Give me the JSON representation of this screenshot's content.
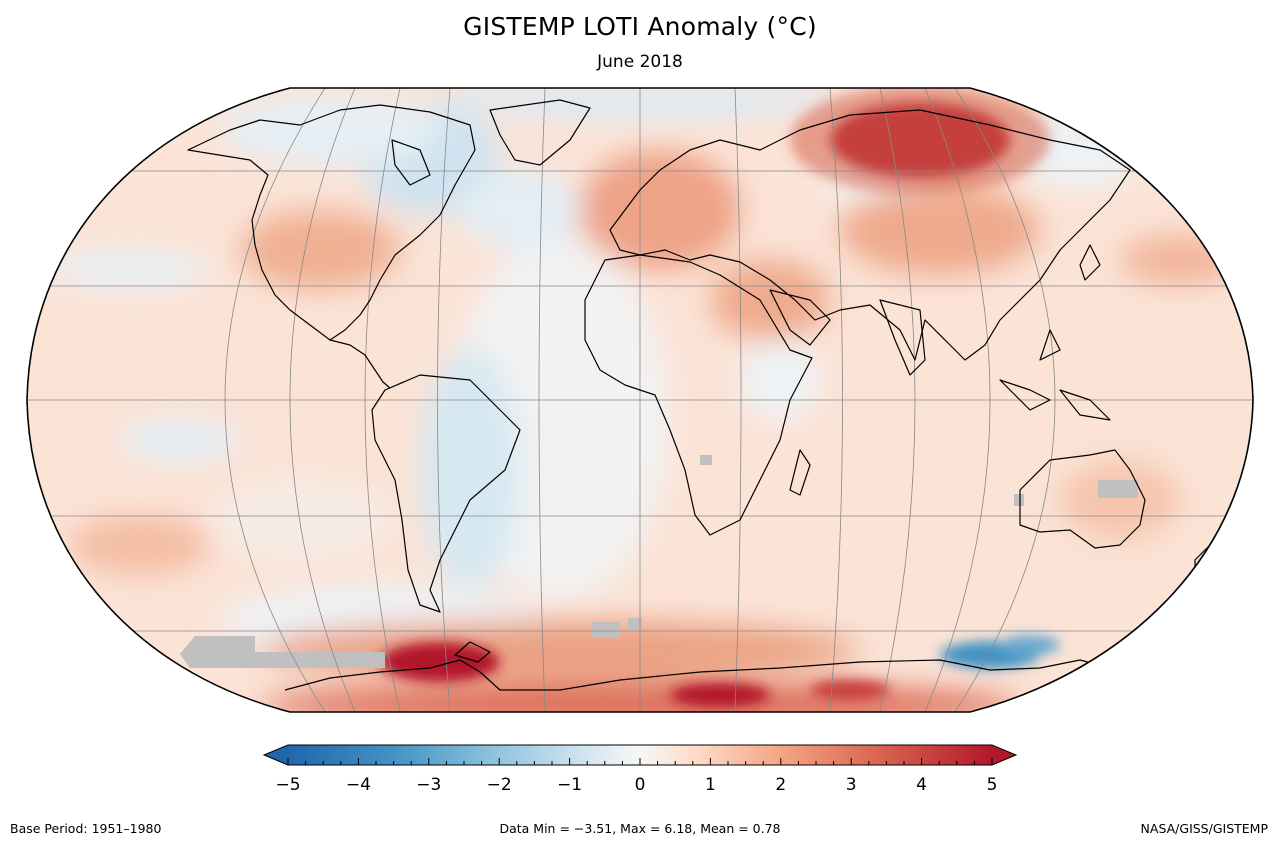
{
  "title": "GISTEMP LOTI Anomaly (°C)",
  "subtitle": "June 2018",
  "footer": {
    "base_period": "Base Period: 1951–1980",
    "stats": "Data Min = −3.51, Max = 6.18, Mean = 0.78",
    "credit": "NASA/GISS/GISTEMP"
  },
  "colorbar": {
    "min": -5,
    "max": 5,
    "ticks": [
      {
        "value": -5,
        "label": "−5"
      },
      {
        "value": -4,
        "label": "−4"
      },
      {
        "value": -3,
        "label": "−3"
      },
      {
        "value": -2,
        "label": "−2"
      },
      {
        "value": -1,
        "label": "−1"
      },
      {
        "value": 0,
        "label": "0"
      },
      {
        "value": 1,
        "label": "1"
      },
      {
        "value": 2,
        "label": "2"
      },
      {
        "value": 3,
        "label": "3"
      },
      {
        "value": 4,
        "label": "4"
      },
      {
        "value": 5,
        "label": "5"
      }
    ],
    "colors": [
      "#2166ac",
      "#4393c3",
      "#92c5de",
      "#d1e5f0",
      "#f7f7f7",
      "#fddbc7",
      "#f4a582",
      "#d6604d",
      "#b2182b"
    ]
  },
  "map": {
    "projection": "Robinson",
    "no_data_color": "#c0c0c0",
    "coastline_color": "#000000",
    "graticule_color": "#888888"
  }
}
